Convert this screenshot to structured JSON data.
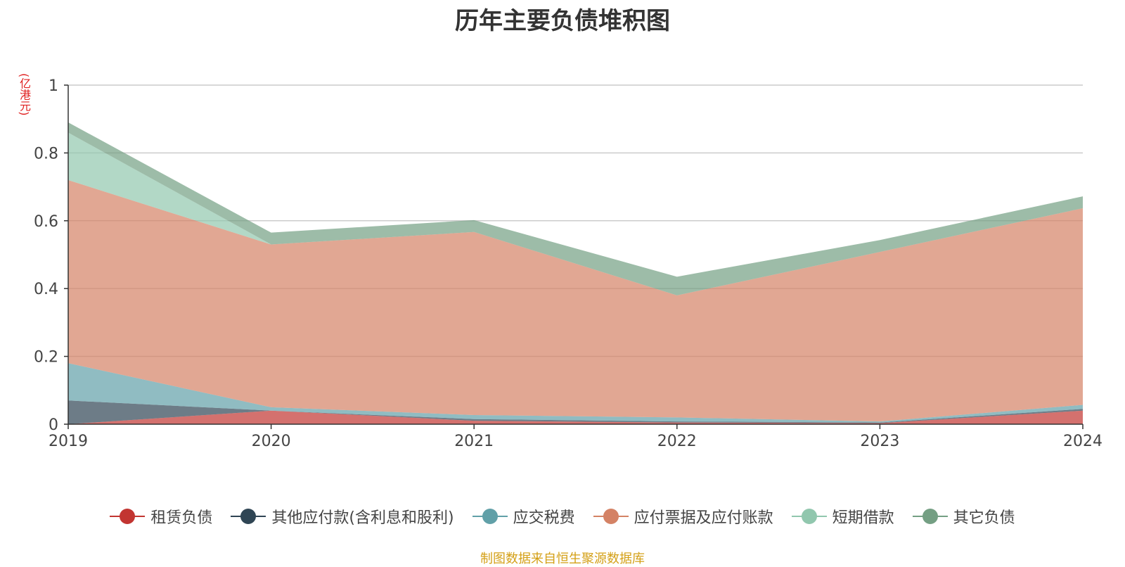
{
  "title": "历年主要负债堆积图",
  "unit_label": "(亿港元)",
  "source": "制图数据来自恒生聚源数据库",
  "chart_data": {
    "type": "area",
    "stacked": true,
    "title": "历年主要负债堆积图",
    "ylabel": "(亿港元)",
    "ylim": [
      0,
      1
    ],
    "yticks": [
      0,
      0.2,
      0.4,
      0.6,
      0.8,
      1
    ],
    "ytick_labels": [
      "0",
      "0.2",
      "0.4",
      "0.6",
      "0.8",
      "1"
    ],
    "categories": [
      "2019",
      "2020",
      "2021",
      "2022",
      "2023",
      "2024"
    ],
    "grid": true,
    "legend_position": "bottom",
    "series": [
      {
        "name": "租赁负债",
        "color": "#c23531",
        "values": [
          0.0,
          0.04,
          0.01,
          0.005,
          0.003,
          0.04
        ]
      },
      {
        "name": "其他应付款(含利息和股利)",
        "color": "#2f4554",
        "values": [
          0.07,
          0.0,
          0.005,
          0.003,
          0.002,
          0.005
        ]
      },
      {
        "name": "应交税费",
        "color": "#61a0a8",
        "values": [
          0.11,
          0.01,
          0.012,
          0.012,
          0.003,
          0.012
        ]
      },
      {
        "name": "应付票据及应付账款",
        "color": "#d48265",
        "values": [
          0.54,
          0.48,
          0.54,
          0.36,
          0.5,
          0.58
        ]
      },
      {
        "name": "短期借款",
        "color": "#91c7ae",
        "values": [
          0.14,
          0.0,
          0.0,
          0.0,
          0.0,
          0.0
        ]
      },
      {
        "name": "其它负债",
        "color": "#749f83",
        "values": [
          0.03,
          0.035,
          0.035,
          0.055,
          0.035,
          0.035
        ]
      }
    ]
  }
}
